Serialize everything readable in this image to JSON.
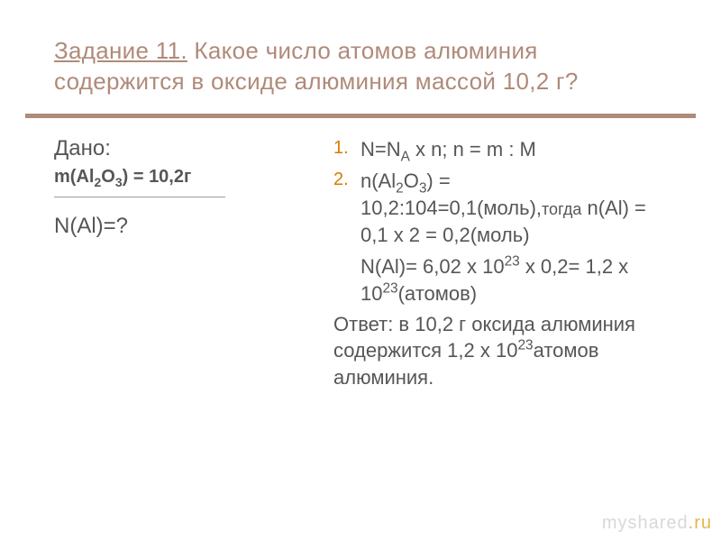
{
  "title": {
    "underlined": "Задание 11.",
    "rest": " Какое число атомов алюминия содержится в оксиде алюминия массой 10,2 г?",
    "color": "#b08a7a",
    "fontsize": 26
  },
  "rule_color": "#b08a7a",
  "left": {
    "dano_label": "Дано:",
    "given_before_sub1": "m(Al",
    "given_sub1": "2",
    "given_mid": "O",
    "given_sub2": "3",
    "given_after": ") = 10,2г",
    "unknown_full": "N(Al)=?"
  },
  "right": {
    "item1": {
      "num": "1.",
      "before": "N=N",
      "subA": "A",
      "after": " x n; n = m : M"
    },
    "item2": {
      "num": "2.",
      "l1_a": "n(Al",
      "l1_s1": "2",
      "l1_b": "O",
      "l1_s2": "3",
      "l1_c": ") = 10,2:104=0,1(моль),",
      "l1_then": "тогда",
      "l2": " n(Al) = 0,1 x 2 = 0,2(моль)"
    },
    "nline": {
      "a": "N(Al)= 6,02 x 10",
      "s1": "23",
      "b": " x 0,2= 1,2 х 10",
      "s2": "23",
      "c": "(атомов)"
    },
    "answer": {
      "a": "Ответ: в 10,2 г оксида алюминия содержится 1,2 х 10",
      "s": "23",
      "b": "атомов алюминия."
    }
  },
  "footer": {
    "plain": "myshared",
    "accent": ".ru"
  },
  "text_color": "#565656",
  "accent_number_color": "#d97b00",
  "background": "#ffffff"
}
